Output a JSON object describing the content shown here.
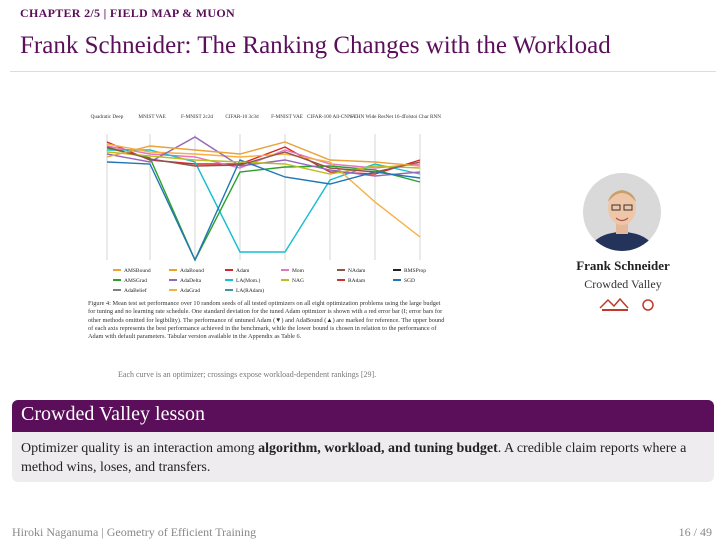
{
  "header": {
    "chapter": "CHAPTER 2/5 | FIELD MAP & MUON",
    "title": "Frank Schneider: The Ranking Changes with the Workload"
  },
  "figure": {
    "columns": [
      "Quadratic Deep",
      "MNIST VAE",
      "F-MNIST 2c2d",
      "CIFAR-10 3c3d",
      "F-MNIST VAE",
      "CIFAR-100 All-CNN-C",
      "SVHN Wide ResNet 16-4",
      "Tolstoi Char RNN"
    ],
    "legend": [
      {
        "name": "AMSBound",
        "color": "#e8a33a"
      },
      {
        "name": "AdaBound",
        "color": "#f0a020"
      },
      {
        "name": "Adam",
        "color": "#d62728"
      },
      {
        "name": "Mom",
        "color": "#e377c2"
      },
      {
        "name": "NAdam",
        "color": "#8c564b"
      },
      {
        "name": "RMSProp",
        "color": "#222222"
      },
      {
        "name": "AMSGrad",
        "color": "#2ca02c"
      },
      {
        "name": "AdaDelta",
        "color": "#9467bd"
      },
      {
        "name": "LA(Mom.)",
        "color": "#17becf"
      },
      {
        "name": "NAG",
        "color": "#bcbd22"
      },
      {
        "name": "RAdam",
        "color": "#c0392b"
      },
      {
        "name": "SGD",
        "color": "#1f77b4"
      },
      {
        "name": "AdaBelief",
        "color": "#7f7f7f"
      },
      {
        "name": "AdaGrad",
        "color": "#f5b041"
      },
      {
        "name": "LA(RAdam)",
        "color": "#4a90a4"
      }
    ],
    "caption": "Figure 4: Mean test set performance over 10 random seeds of all tested optimizers on all eight optimization problems using the large budget for tuning and no learning rate schedule. One standard deviation for the tuned Adam optimizer is shown with a red error bar (I; error bars for other methods omitted for legibility). The performance of untuned Adam (▼) and AdaBound (▲) are marked for reference. The upper bound of each axis represents the best performance achieved in the benchmark, while the lower bound is chosen in relation to the performance of Adam with default parameters. Tabular version available in the Appendix as Table 6.",
    "note": "Each curve is an optimizer; crossings expose workload-dependent rankings [29]."
  },
  "person": {
    "name": "Frank Schneider",
    "affiliation": "Crowded Valley"
  },
  "lesson": {
    "title": "Crowded Valley lesson",
    "before": "Optimizer quality is an interaction among ",
    "bold": "algorithm, workload, and tuning budget",
    "after": ". A credible claim reports where a method wins, loses, and transfers."
  },
  "footer": {
    "left": "Hiroki Naganuma | Geometry of Efficient Training",
    "page": "16 / 49"
  }
}
